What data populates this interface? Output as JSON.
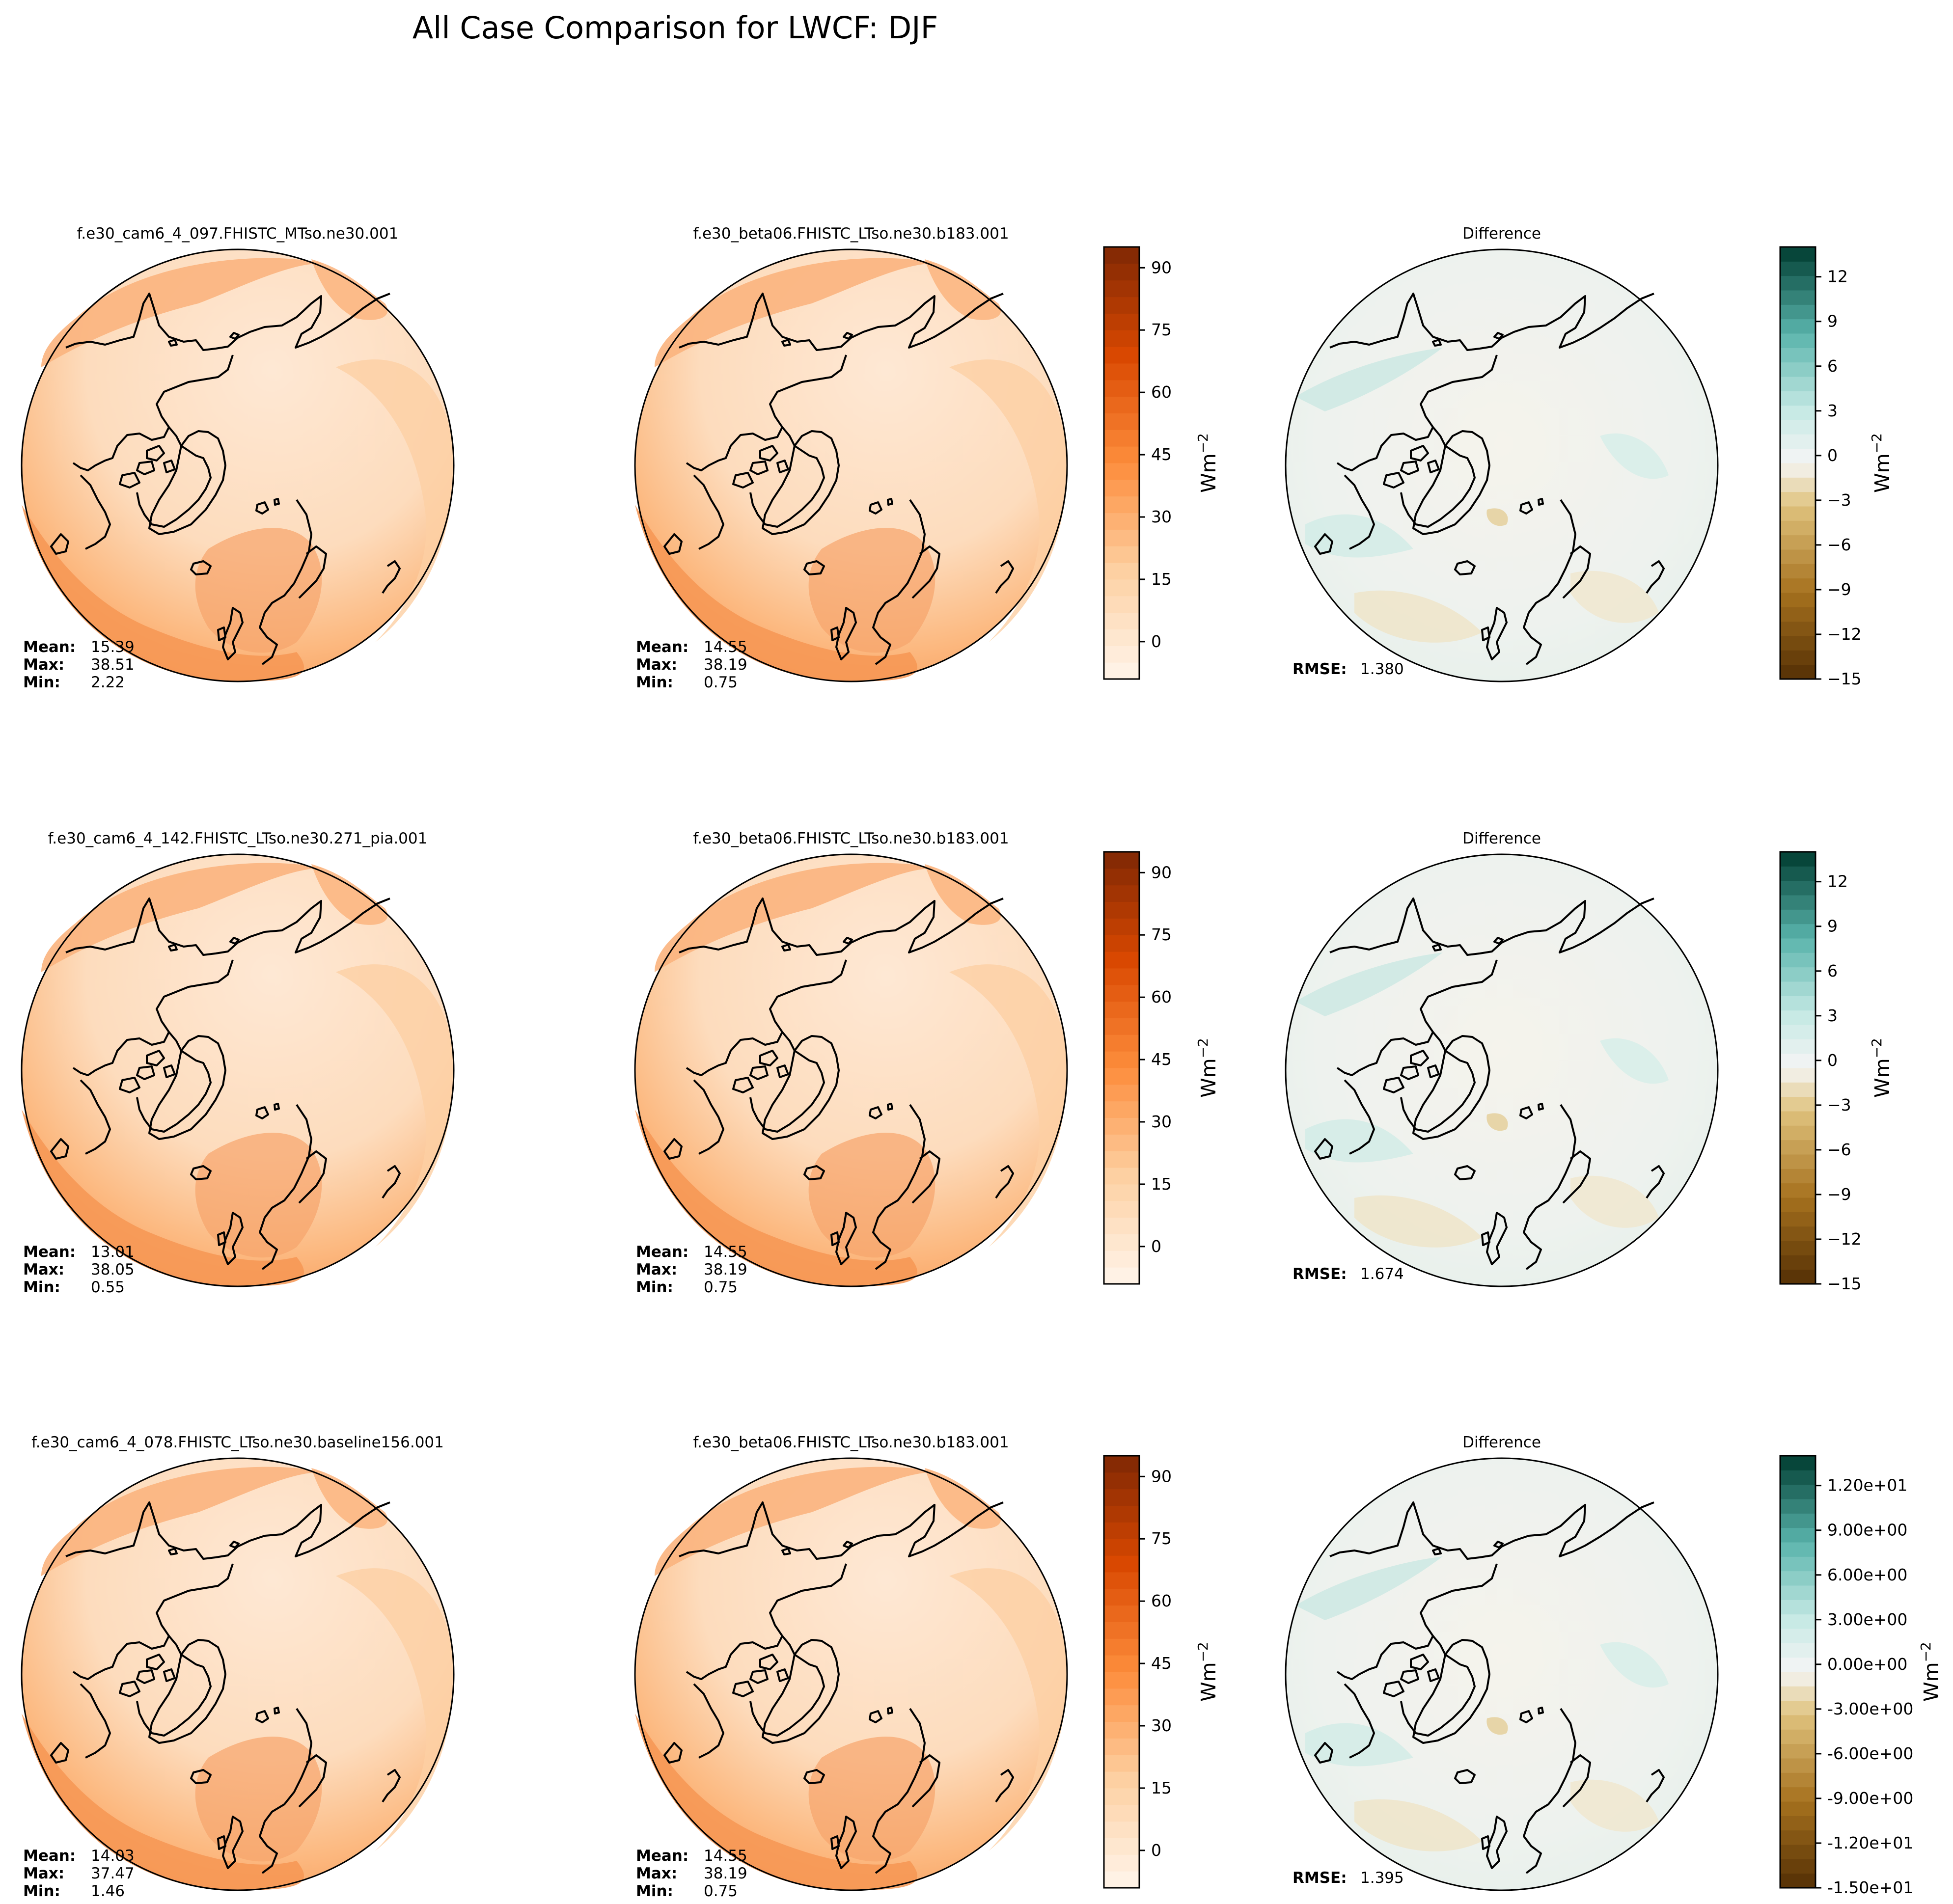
{
  "figure_title": "All Case Comparison for LWCF: DJF",
  "chart_data": [
    {
      "type": "contour-map",
      "projection": "north-polar-stereographic",
      "rows": [
        {
          "test_case": {
            "title": "f.e30_cam6_4_097.FHISTC_MTso.ne30.001",
            "stats": {
              "mean_label": "Mean:",
              "mean": "15.39",
              "max_label": "Max:",
              "max": "38.51",
              "min_label": "Min:",
              "min": "2.22"
            }
          },
          "baseline_case": {
            "title": "f.e30_beta06.FHISTC_LTso.ne30.b183.001",
            "stats": {
              "mean_label": "Mean:",
              "mean": "14.55",
              "max_label": "Max:",
              "max": "38.19",
              "min_label": "Min:",
              "min": "0.75"
            }
          },
          "difference": {
            "title": "Difference",
            "stats": {
              "rmse_label": "RMSE:",
              "rmse": "1.380"
            }
          },
          "field_colorbar": {
            "ticks": [
              "90",
              "75",
              "60",
              "45",
              "30",
              "15",
              "0"
            ],
            "range": [
              -9,
              95
            ],
            "unit_base": "Wm",
            "unit_exp": "−2"
          },
          "diff_colorbar": {
            "ticks": [
              "12",
              "9",
              "6",
              "3",
              "0",
              "−3",
              "−6",
              "−9",
              "−12",
              "−15"
            ],
            "range": [
              -15,
              14
            ],
            "unit_base": "Wm",
            "unit_exp": "−2"
          }
        },
        {
          "test_case": {
            "title": "f.e30_cam6_4_142.FHISTC_LTso.ne30.271_pia.001",
            "stats": {
              "mean_label": "Mean:",
              "mean": "13.01",
              "max_label": "Max:",
              "max": "38.05",
              "min_label": "Min:",
              "min": "0.55"
            }
          },
          "baseline_case": {
            "title": "f.e30_beta06.FHISTC_LTso.ne30.b183.001",
            "stats": {
              "mean_label": "Mean:",
              "mean": "14.55",
              "max_label": "Max:",
              "max": "38.19",
              "min_label": "Min:",
              "min": "0.75"
            }
          },
          "difference": {
            "title": "Difference",
            "stats": {
              "rmse_label": "RMSE:",
              "rmse": "1.674"
            }
          },
          "field_colorbar": {
            "ticks": [
              "90",
              "75",
              "60",
              "45",
              "30",
              "15",
              "0"
            ],
            "range": [
              -9,
              95
            ],
            "unit_base": "Wm",
            "unit_exp": "−2"
          },
          "diff_colorbar": {
            "ticks": [
              "12",
              "9",
              "6",
              "3",
              "0",
              "−3",
              "−6",
              "−9",
              "−12",
              "−15"
            ],
            "range": [
              -15,
              14
            ],
            "unit_base": "Wm",
            "unit_exp": "−2"
          }
        },
        {
          "test_case": {
            "title": "f.e30_cam6_4_078.FHISTC_LTso.ne30.baseline156.001",
            "stats": {
              "mean_label": "Mean:",
              "mean": "14.03",
              "max_label": "Max:",
              "max": "37.47",
              "min_label": "Min:",
              "min": "1.46"
            }
          },
          "baseline_case": {
            "title": "f.e30_beta06.FHISTC_LTso.ne30.b183.001",
            "stats": {
              "mean_label": "Mean:",
              "mean": "14.55",
              "max_label": "Max:",
              "max": "38.19",
              "min_label": "Min:",
              "min": "0.75"
            }
          },
          "difference": {
            "title": "Difference",
            "stats": {
              "rmse_label": "RMSE:",
              "rmse": "1.395"
            }
          },
          "field_colorbar": {
            "ticks": [
              "90",
              "75",
              "60",
              "45",
              "30",
              "15",
              "0"
            ],
            "range": [
              -9,
              95
            ],
            "unit_base": "Wm",
            "unit_exp": "−2"
          },
          "diff_colorbar": {
            "ticks": [
              "1.20e+01",
              "9.00e+00",
              "6.00e+00",
              "3.00e+00",
              "0.00e+00",
              "-3.00e+00",
              "-6.00e+00",
              "-9.00e+00",
              "-1.20e+01",
              "-1.50e+01"
            ],
            "range": [
              -15,
              14
            ],
            "unit_base": "Wm",
            "unit_exp": "−2"
          }
        }
      ]
    }
  ],
  "colors": {
    "field_low": "#fff5eb",
    "field_mid": "#fd8d3c",
    "field_high": "#7f2704",
    "diff_neg": "#543005",
    "diff_zero": "#f5f5f5",
    "diff_pos": "#003c30"
  }
}
